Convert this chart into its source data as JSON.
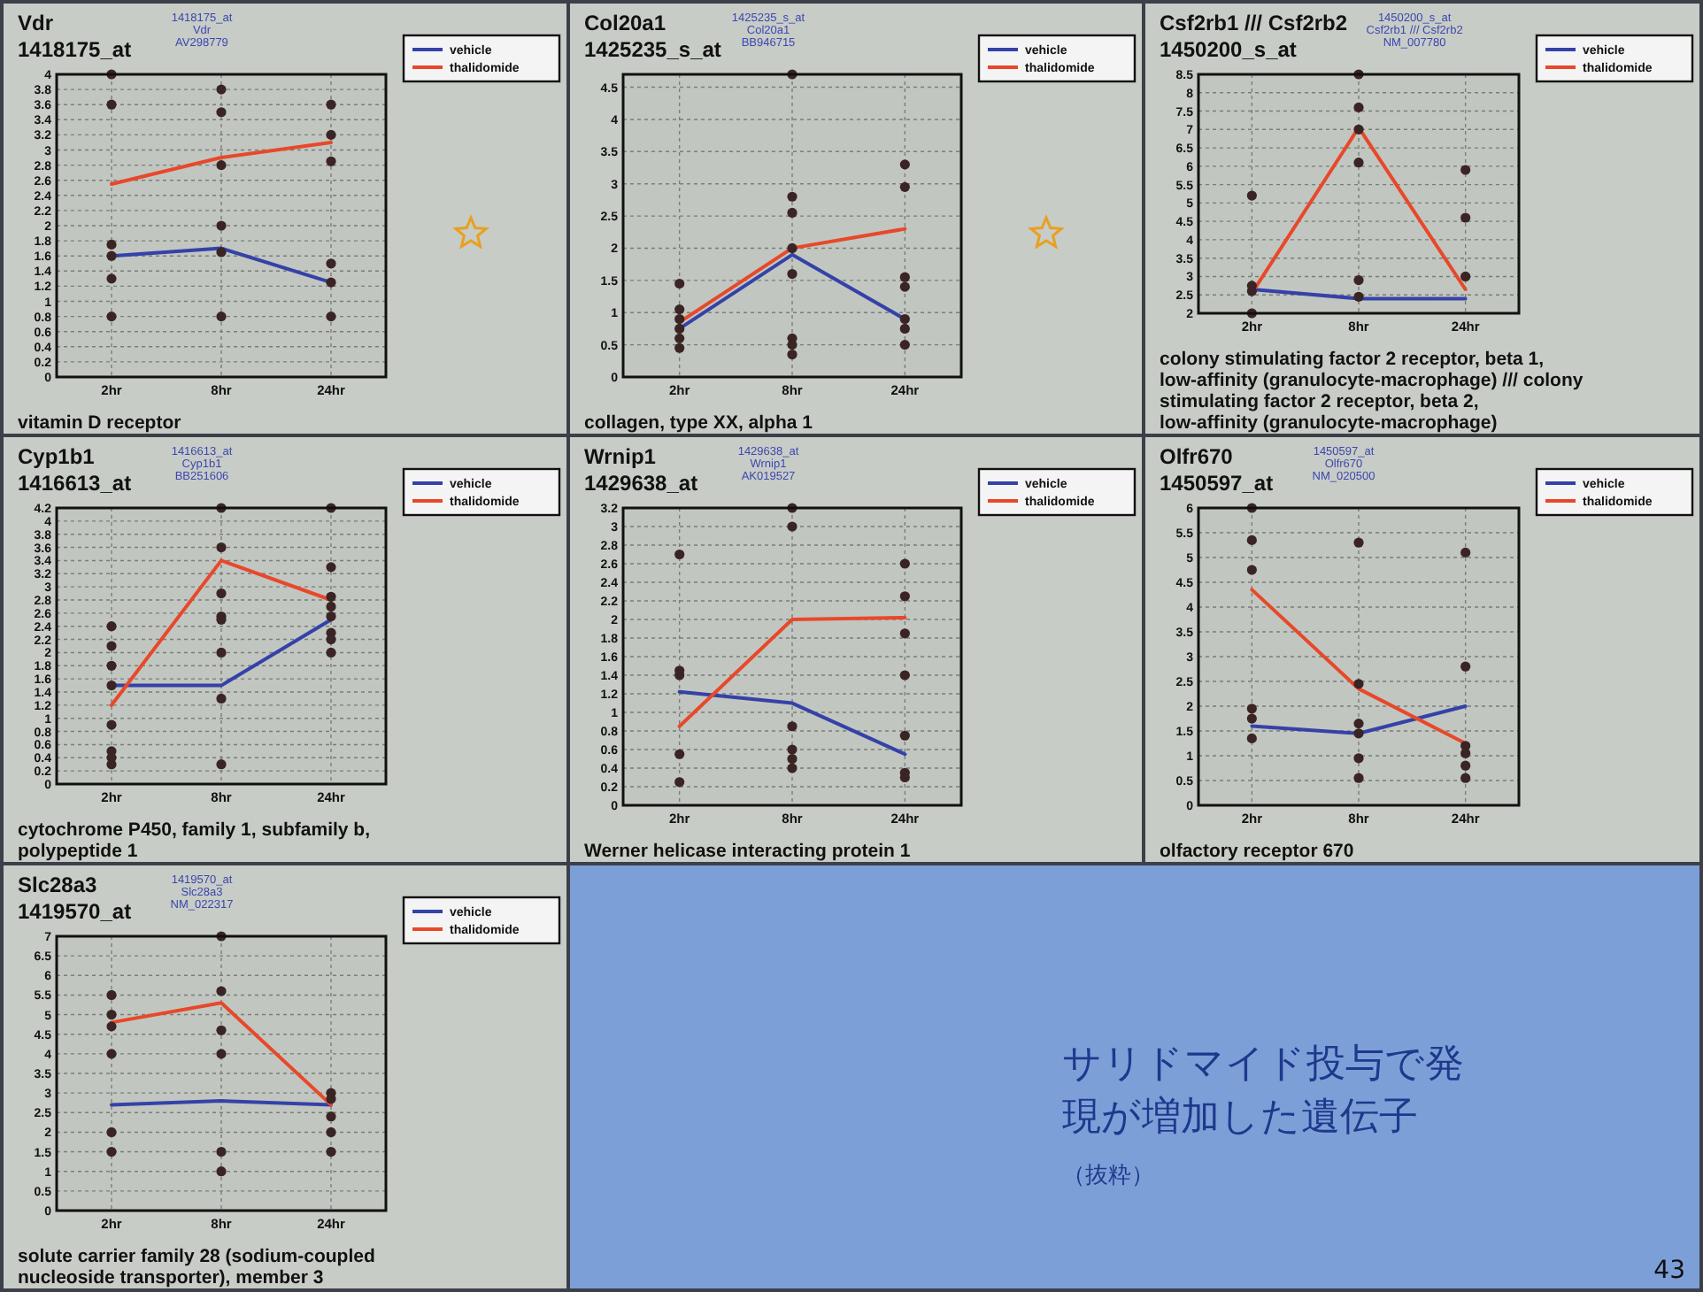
{
  "chart_data": [
    {
      "type": "line",
      "title": "Vdr",
      "subtitle": "1418175_at",
      "annotations": [
        "1418175_at",
        "Vdr",
        "AV298779"
      ],
      "xlabel": "vitamin D receptor",
      "categories": [
        "2hr",
        "8hr",
        "24hr"
      ],
      "ylim": [
        0,
        4
      ],
      "yticks": [
        0,
        0.2,
        0.4,
        0.6,
        0.8,
        1,
        1.2,
        1.4,
        1.6,
        1.8,
        2,
        2.2,
        2.4,
        2.6,
        2.8,
        3,
        3.2,
        3.4,
        3.6,
        3.8,
        4
      ],
      "grid": true,
      "legend": "top right",
      "series": [
        {
          "name": "vehicle",
          "color": "#3442a8",
          "values": [
            1.6,
            1.7,
            1.25
          ]
        },
        {
          "name": "thalidomide",
          "color": "#e8482a",
          "values": [
            2.55,
            2.9,
            3.1
          ]
        },
        {
          "type": "scatter",
          "color": "#3a2424",
          "x": [
            "2hr",
            "2hr",
            "2hr",
            "2hr",
            "2hr",
            "2hr",
            "8hr",
            "8hr",
            "8hr",
            "8hr",
            "8hr",
            "8hr",
            "24hr",
            "24hr",
            "24hr",
            "24hr",
            "24hr",
            "24hr"
          ],
          "values": [
            4,
            3.6,
            1.75,
            1.6,
            1.3,
            0.8,
            3.8,
            3.5,
            2.8,
            2,
            1.65,
            0.8,
            3.6,
            3.2,
            2.85,
            1.5,
            1.25,
            0.8
          ]
        }
      ]
    },
    {
      "type": "line",
      "title": "Col20a1",
      "subtitle": "1425235_s_at",
      "annotations": [
        "1425235_s_at",
        "Col20a1",
        "BB946715"
      ],
      "xlabel": "collagen, type XX, alpha 1",
      "categories": [
        "2hr",
        "8hr",
        "24hr"
      ],
      "ylim": [
        0,
        4.7
      ],
      "yticks": [
        0,
        0.5,
        1,
        1.5,
        2,
        2.5,
        3,
        3.5,
        4,
        4.5
      ],
      "grid": true,
      "legend": "top right",
      "series": [
        {
          "name": "vehicle",
          "color": "#3442a8",
          "values": [
            0.75,
            1.9,
            0.9
          ]
        },
        {
          "name": "thalidomide",
          "color": "#e8482a",
          "values": [
            0.85,
            2,
            2.3
          ]
        },
        {
          "type": "scatter",
          "color": "#3a2424",
          "x": [
            "2hr",
            "2hr",
            "2hr",
            "2hr",
            "2hr",
            "2hr",
            "8hr",
            "8hr",
            "8hr",
            "8hr",
            "8hr",
            "8hr",
            "8hr",
            "8hr",
            "24hr",
            "24hr",
            "24hr",
            "24hr",
            "24hr",
            "24hr",
            "24hr"
          ],
          "values": [
            1.45,
            1.05,
            0.9,
            0.75,
            0.6,
            0.45,
            4.7,
            2.8,
            2.55,
            2,
            1.6,
            0.6,
            0.5,
            0.35,
            3.3,
            2.95,
            1.55,
            1.4,
            0.9,
            0.75,
            0.5
          ]
        }
      ]
    },
    {
      "type": "line",
      "title": "Csf2rb1 /// Csf2rb2",
      "subtitle": "1450200_s_at",
      "annotations": [
        "1450200_s_at",
        "Csf2rb1 /// Csf2rb2",
        "NM_007780"
      ],
      "xlabel": "colony stimulating factor 2 receptor, beta 1, low-affinity (granulocyte-macrophage) /// colony stimulating factor 2 receptor, beta 2, low-affinity (granulocyte-macrophage)",
      "categories": [
        "2hr",
        "8hr",
        "24hr"
      ],
      "ylim": [
        2,
        8.5
      ],
      "yticks": [
        2,
        2.5,
        3,
        3.5,
        4,
        4.5,
        5,
        5.5,
        6,
        6.5,
        7,
        7.5,
        8,
        8.5
      ],
      "grid": true,
      "legend": "top right",
      "series": [
        {
          "name": "vehicle",
          "color": "#3442a8",
          "values": [
            2.65,
            2.4,
            2.4
          ]
        },
        {
          "name": "thalidomide",
          "color": "#e8482a",
          "values": [
            2.55,
            7.05,
            2.65
          ]
        },
        {
          "type": "scatter",
          "color": "#3a2424",
          "x": [
            "2hr",
            "2hr",
            "2hr",
            "2hr",
            "8hr",
            "8hr",
            "8hr",
            "8hr",
            "8hr",
            "8hr",
            "24hr",
            "24hr",
            "24hr"
          ],
          "values": [
            5.2,
            2.75,
            2.6,
            2,
            8.5,
            7.6,
            7,
            6.1,
            2.9,
            2.45,
            5.9,
            4.6,
            3
          ]
        }
      ]
    },
    {
      "type": "line",
      "title": "Cyp1b1",
      "subtitle": "1416613_at",
      "annotations": [
        "1416613_at",
        "Cyp1b1",
        "BB251606"
      ],
      "xlabel": "cytochrome P450, family 1, subfamily b, polypeptide 1",
      "categories": [
        "2hr",
        "8hr",
        "24hr"
      ],
      "ylim": [
        0,
        4.2
      ],
      "yticks": [
        0,
        0.2,
        0.4,
        0.6,
        0.8,
        1,
        1.2,
        1.4,
        1.6,
        1.8,
        2,
        2.2,
        2.4,
        2.6,
        2.8,
        3,
        3.2,
        3.4,
        3.6,
        3.8,
        4,
        4.2
      ],
      "grid": true,
      "legend": "top right",
      "series": [
        {
          "name": "vehicle",
          "color": "#3442a8",
          "values": [
            1.5,
            1.5,
            2.5
          ]
        },
        {
          "name": "thalidomide",
          "color": "#e8482a",
          "values": [
            1.2,
            3.4,
            2.8
          ]
        },
        {
          "type": "scatter",
          "color": "#3a2424",
          "x": [
            "2hr",
            "2hr",
            "2hr",
            "2hr",
            "2hr",
            "2hr",
            "2hr",
            "2hr",
            "8hr",
            "8hr",
            "8hr",
            "8hr",
            "8hr",
            "8hr",
            "8hr",
            "8hr",
            "24hr",
            "24hr",
            "24hr",
            "24hr",
            "24hr",
            "24hr",
            "24hr",
            "24hr"
          ],
          "values": [
            2.4,
            2.1,
            1.8,
            1.5,
            0.9,
            0.5,
            0.4,
            0.3,
            4.2,
            3.6,
            2.9,
            2.55,
            2.5,
            2,
            1.3,
            0.3,
            4.2,
            3.3,
            2.85,
            2.7,
            2.55,
            2.3,
            2.2,
            2
          ]
        }
      ]
    },
    {
      "type": "line",
      "title": "Wrnip1",
      "subtitle": "1429638_at",
      "annotations": [
        "1429638_at",
        "Wrnip1",
        "AK019527"
      ],
      "xlabel": "Werner helicase interacting protein 1",
      "categories": [
        "2hr",
        "8hr",
        "24hr"
      ],
      "ylim": [
        0,
        3.2
      ],
      "yticks": [
        0,
        0.2,
        0.4,
        0.6,
        0.8,
        1,
        1.2,
        1.4,
        1.6,
        1.8,
        2,
        2.2,
        2.4,
        2.6,
        2.8,
        3,
        3.2
      ],
      "grid": true,
      "legend": "top right",
      "series": [
        {
          "name": "vehicle",
          "color": "#3442a8",
          "values": [
            1.22,
            1.1,
            0.55
          ]
        },
        {
          "name": "thalidomide",
          "color": "#e8482a",
          "values": [
            0.85,
            2,
            2.02
          ]
        },
        {
          "type": "scatter",
          "color": "#3a2424",
          "x": [
            "2hr",
            "2hr",
            "2hr",
            "2hr",
            "2hr",
            "8hr",
            "8hr",
            "8hr",
            "8hr",
            "8hr",
            "8hr",
            "24hr",
            "24hr",
            "24hr",
            "24hr",
            "24hr",
            "24hr",
            "24hr"
          ],
          "values": [
            2.7,
            1.45,
            1.4,
            0.55,
            0.25,
            3.2,
            3,
            0.85,
            0.6,
            0.5,
            0.4,
            2.6,
            2.25,
            1.85,
            1.4,
            0.75,
            0.35,
            0.3
          ]
        }
      ]
    },
    {
      "type": "line",
      "title": "Olfr670",
      "subtitle": "1450597_at",
      "annotations": [
        "1450597_at",
        "Olfr670",
        "NM_020500"
      ],
      "xlabel": "olfactory receptor 670",
      "categories": [
        "2hr",
        "8hr",
        "24hr"
      ],
      "ylim": [
        0,
        6
      ],
      "yticks": [
        0,
        0.5,
        1,
        1.5,
        2,
        2.5,
        3,
        3.5,
        4,
        4.5,
        5,
        5.5,
        6
      ],
      "grid": true,
      "legend": "top right",
      "series": [
        {
          "name": "vehicle",
          "color": "#3442a8",
          "values": [
            1.6,
            1.45,
            2
          ]
        },
        {
          "name": "thalidomide",
          "color": "#e8482a",
          "values": [
            4.35,
            2.35,
            1.25
          ]
        },
        {
          "type": "scatter",
          "color": "#3a2424",
          "x": [
            "2hr",
            "2hr",
            "2hr",
            "2hr",
            "2hr",
            "2hr",
            "8hr",
            "8hr",
            "8hr",
            "8hr",
            "8hr",
            "8hr",
            "24hr",
            "24hr",
            "24hr",
            "24hr",
            "24hr",
            "24hr"
          ],
          "values": [
            6,
            5.35,
            4.75,
            1.95,
            1.75,
            1.35,
            5.3,
            2.45,
            1.65,
            1.45,
            0.95,
            0.55,
            5.1,
            2.8,
            1.2,
            1.05,
            0.8,
            0.55
          ]
        }
      ]
    },
    {
      "type": "line",
      "title": "Slc28a3",
      "subtitle": "1419570_at",
      "annotations": [
        "1419570_at",
        "Slc28a3",
        "NM_022317"
      ],
      "xlabel": "solute carrier family 28 (sodium-coupled nucleoside transporter), member 3",
      "categories": [
        "2hr",
        "8hr",
        "24hr"
      ],
      "ylim": [
        0,
        7
      ],
      "yticks": [
        0,
        0.5,
        1,
        1.5,
        2,
        2.5,
        3,
        3.5,
        4,
        4.5,
        5,
        5.5,
        6,
        6.5,
        7
      ],
      "grid": true,
      "legend": "top right",
      "series": [
        {
          "name": "vehicle",
          "color": "#3442a8",
          "values": [
            2.7,
            2.8,
            2.7
          ]
        },
        {
          "name": "thalidomide",
          "color": "#e8482a",
          "values": [
            4.8,
            5.3,
            2.7
          ]
        },
        {
          "type": "scatter",
          "color": "#3a2424",
          "x": [
            "2hr",
            "2hr",
            "2hr",
            "2hr",
            "2hr",
            "2hr",
            "8hr",
            "8hr",
            "8hr",
            "8hr",
            "8hr",
            "8hr",
            "24hr",
            "24hr",
            "24hr",
            "24hr",
            "24hr"
          ],
          "values": [
            5.5,
            5,
            4.7,
            4,
            2,
            1.5,
            7,
            5.6,
            4.6,
            4,
            1.5,
            1,
            3,
            2.85,
            2.4,
            2,
            1.5
          ]
        }
      ]
    },
    {
      "type": "other",
      "title": "サリドマイド投与で発現が増加した遺伝子",
      "subtitle": "（抜粋）",
      "annotations": [
        "43"
      ]
    }
  ]
}
